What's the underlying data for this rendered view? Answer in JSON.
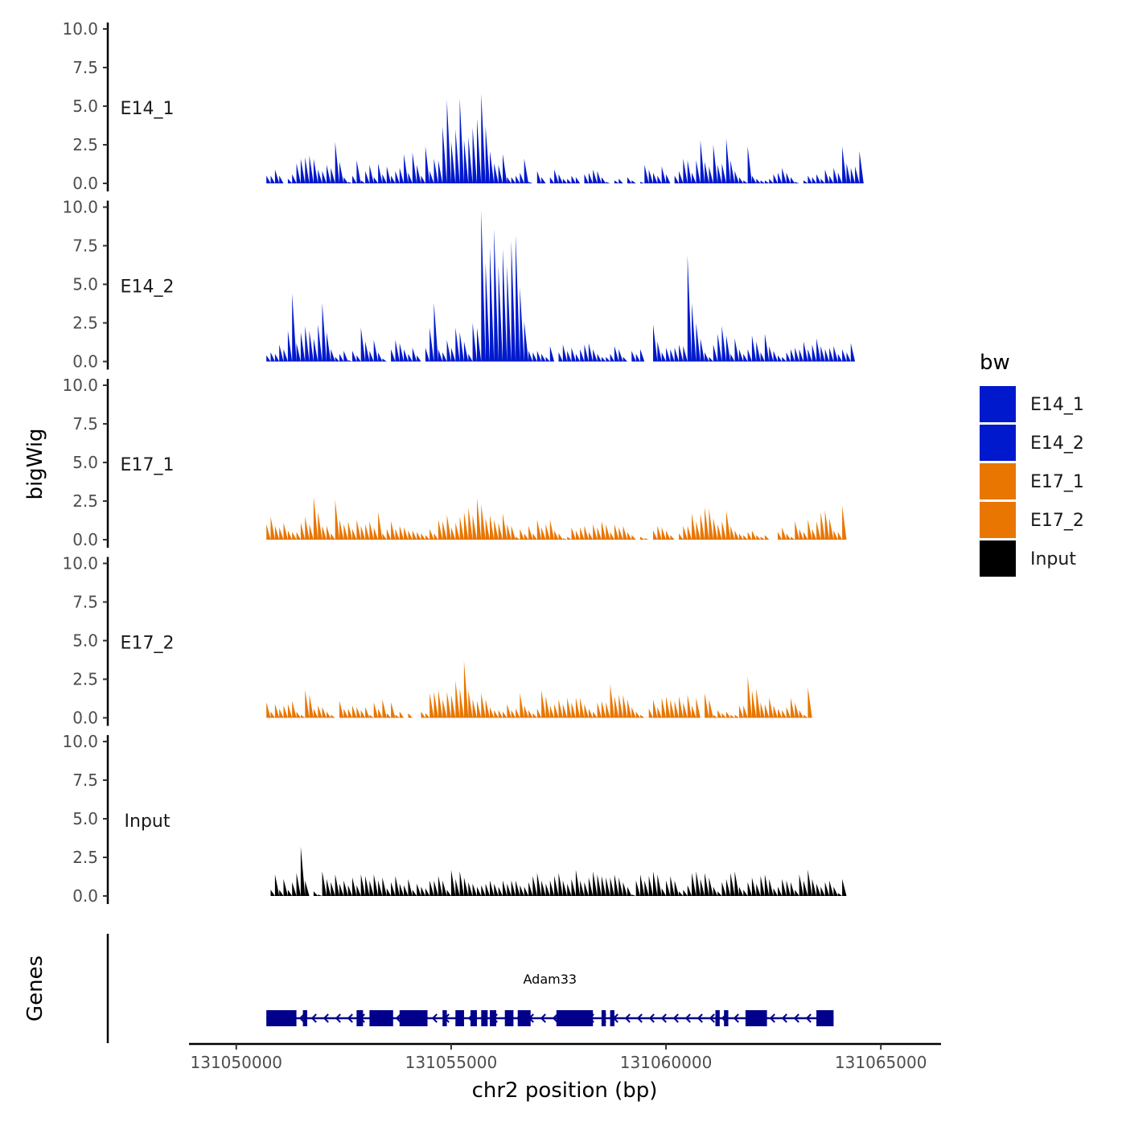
{
  "chart_data": {
    "type": "area",
    "y_axis_title": "bigWig",
    "gene_axis_title": "Genes",
    "x_axis_title": "chr2 position (bp)",
    "x_range": [
      131048900,
      131066400
    ],
    "x_ticks": [
      131050000,
      131055000,
      131060000,
      131065000
    ],
    "x_tick_labels": [
      "131050000",
      "131055000",
      "131060000",
      "131065000"
    ],
    "y_range": [
      0,
      10
    ],
    "y_ticks": [
      0,
      2.5,
      5,
      7.5,
      10
    ],
    "y_tick_labels": [
      "0.0",
      "2.5",
      "5.0",
      "7.5",
      "10.0"
    ],
    "data_start": 131050700,
    "data_step": 100,
    "legend": {
      "title": "bw",
      "entries": [
        {
          "name": "E14_1",
          "color": "#0019cc"
        },
        {
          "name": "E14_2",
          "color": "#0019cc"
        },
        {
          "name": "E17_1",
          "color": "#e87600"
        },
        {
          "name": "E17_2",
          "color": "#e87600"
        },
        {
          "name": "Input",
          "color": "#000000"
        }
      ]
    },
    "series": [
      {
        "name": "E14_1",
        "color": "#0019cc",
        "values": [
          0.5,
          0.5,
          0.9,
          0.5,
          0.0,
          0.3,
          0.6,
          1.3,
          1.6,
          1.7,
          1.8,
          1.6,
          0.9,
          0.8,
          1.2,
          1.0,
          2.7,
          1.4,
          0.4,
          0.1,
          0.5,
          1.5,
          0.2,
          0.8,
          1.2,
          0.4,
          1.3,
          0.6,
          1.1,
          0.5,
          0.8,
          1.0,
          1.9,
          0.7,
          2.0,
          1.2,
          0.5,
          2.4,
          0.8,
          1.6,
          1.5,
          3.7,
          5.4,
          2.7,
          3.5,
          5.5,
          2.8,
          3.0,
          3.6,
          4.2,
          5.8,
          3.7,
          2.1,
          1.3,
          1.2,
          1.9,
          0.4,
          0.4,
          0.5,
          0.7,
          1.6,
          0.1,
          0.0,
          0.8,
          0.4,
          0.0,
          0.4,
          0.9,
          0.6,
          0.3,
          0.3,
          0.5,
          0.4,
          0.0,
          0.6,
          0.7,
          0.9,
          0.8,
          0.4,
          0.1,
          0.0,
          0.2,
          0.3,
          0.0,
          0.4,
          0.2,
          0.0,
          0.1,
          1.2,
          0.9,
          0.7,
          0.5,
          1.1,
          0.6,
          0.0,
          0.5,
          0.8,
          1.6,
          1.5,
          0.7,
          1.5,
          2.8,
          1.4,
          1.1,
          2.5,
          1.2,
          1.3,
          2.9,
          1.5,
          0.8,
          0.4,
          0.2,
          2.4,
          0.5,
          0.3,
          0.2,
          0.2,
          0.3,
          0.6,
          0.7,
          1.0,
          0.7,
          0.4,
          0.1,
          0.0,
          0.2,
          0.5,
          0.4,
          0.6,
          0.3,
          0.9,
          0.5,
          1.0,
          0.7,
          2.4,
          1.3,
          1.0,
          1.1,
          2.1,
          2.1
        ]
      },
      {
        "name": "E14_2",
        "color": "#0019cc",
        "values": [
          0.4,
          0.6,
          0.5,
          1.1,
          0.8,
          2.0,
          4.4,
          1.2,
          1.9,
          2.3,
          2.0,
          1.5,
          2.4,
          3.8,
          1.9,
          0.8,
          0.3,
          0.5,
          0.7,
          0.1,
          0.7,
          0.4,
          2.2,
          1.3,
          0.7,
          1.4,
          0.6,
          0.2,
          0.0,
          0.8,
          1.4,
          1.2,
          0.8,
          0.5,
          0.9,
          0.4,
          0.0,
          0.9,
          2.2,
          3.8,
          0.8,
          0.6,
          1.4,
          0.9,
          2.2,
          1.9,
          1.3,
          0.5,
          2.5,
          2.2,
          9.8,
          6.4,
          7.4,
          8.6,
          6.2,
          7.3,
          6.2,
          7.8,
          8.2,
          4.8,
          2.6,
          0.7,
          0.6,
          0.7,
          0.5,
          0.3,
          1.0,
          0.0,
          0.6,
          1.1,
          0.7,
          0.9,
          0.5,
          0.8,
          1.1,
          1.2,
          0.8,
          0.5,
          0.3,
          0.3,
          0.5,
          1.0,
          0.8,
          0.3,
          0.0,
          0.7,
          0.5,
          0.8,
          0.0,
          0.0,
          2.4,
          1.3,
          0.6,
          0.9,
          0.8,
          0.9,
          1.1,
          1.0,
          6.9,
          3.8,
          2.5,
          1.5,
          0.6,
          0.3,
          1.1,
          1.8,
          2.3,
          1.7,
          0.5,
          1.5,
          0.8,
          0.5,
          0.8,
          1.7,
          1.3,
          0.6,
          1.8,
          1.0,
          0.7,
          0.4,
          0.3,
          0.6,
          0.8,
          0.9,
          0.8,
          1.3,
          0.8,
          1.1,
          1.5,
          1.0,
          0.8,
          0.9,
          1.0,
          0.5,
          0.8,
          0.6,
          1.2,
          0.5
        ]
      },
      {
        "name": "E17_1",
        "color": "#e87600",
        "values": [
          1.0,
          1.5,
          0.9,
          0.8,
          1.1,
          0.6,
          0.5,
          0.5,
          1.1,
          1.5,
          1.0,
          2.8,
          1.8,
          0.9,
          0.9,
          0.4,
          2.6,
          1.3,
          1.0,
          1.2,
          0.7,
          1.3,
          0.9,
          1.0,
          1.2,
          0.8,
          1.8,
          0.4,
          0.7,
          1.2,
          0.7,
          0.9,
          0.8,
          0.6,
          0.6,
          0.5,
          0.4,
          0.3,
          0.7,
          0.4,
          1.3,
          1.2,
          1.6,
          0.8,
          1.1,
          1.5,
          1.8,
          2.1,
          1.6,
          2.7,
          2.3,
          1.4,
          1.6,
          1.3,
          1.1,
          1.7,
          1.0,
          0.9,
          0.2,
          0.7,
          0.4,
          0.9,
          0.4,
          1.3,
          0.8,
          1.0,
          1.3,
          0.6,
          0.4,
          0.1,
          0.2,
          0.8,
          0.6,
          0.8,
          0.9,
          0.5,
          1.0,
          0.8,
          1.2,
          1.0,
          0.5,
          1.0,
          0.8,
          0.9,
          0.5,
          0.3,
          0.0,
          0.2,
          0.1,
          0.0,
          0.6,
          0.9,
          0.8,
          0.6,
          0.3,
          0.0,
          0.4,
          0.9,
          0.9,
          1.7,
          1.2,
          1.7,
          2.1,
          2.0,
          1.4,
          1.0,
          1.2,
          1.9,
          0.9,
          0.6,
          0.4,
          0.3,
          0.5,
          0.6,
          0.3,
          0.2,
          0.3,
          0.0,
          0.0,
          0.5,
          0.8,
          0.4,
          0.2,
          1.2,
          0.7,
          0.5,
          1.3,
          0.7,
          1.2,
          1.8,
          1.9,
          1.4,
          0.6,
          0.5,
          2.2,
          2.0
        ]
      },
      {
        "name": "E17_2",
        "color": "#e87600",
        "values": [
          1.0,
          0.4,
          0.9,
          0.6,
          0.8,
          0.9,
          1.1,
          0.4,
          0.2,
          1.8,
          1.5,
          0.6,
          0.8,
          0.7,
          0.4,
          0.2,
          0.0,
          1.1,
          0.6,
          0.6,
          0.8,
          0.7,
          0.5,
          0.7,
          0.2,
          1.0,
          0.6,
          1.2,
          0.3,
          1.0,
          0.2,
          0.4,
          0.0,
          0.3,
          0.0,
          0.0,
          0.4,
          0.3,
          1.6,
          1.7,
          1.8,
          1.2,
          1.7,
          1.5,
          2.4,
          1.9,
          3.7,
          1.8,
          1.2,
          1.1,
          1.6,
          1.2,
          0.7,
          0.5,
          0.5,
          0.4,
          0.9,
          0.5,
          0.6,
          1.6,
          0.8,
          0.5,
          0.3,
          0.6,
          1.8,
          1.4,
          0.8,
          0.9,
          1.2,
          0.9,
          1.3,
          1.0,
          1.3,
          1.3,
          0.9,
          0.6,
          0.4,
          1.0,
          1.1,
          1.0,
          2.2,
          1.4,
          1.5,
          1.5,
          1.2,
          0.7,
          0.4,
          0.2,
          0.0,
          0.6,
          1.2,
          0.7,
          1.3,
          1.4,
          1.2,
          1.1,
          1.4,
          1.0,
          1.5,
          0.8,
          1.3,
          0.0,
          1.6,
          1.2,
          0.2,
          0.5,
          0.3,
          0.4,
          0.2,
          0.2,
          0.8,
          0.8,
          2.7,
          1.8,
          1.9,
          1.0,
          0.9,
          1.3,
          0.8,
          0.6,
          0.5,
          0.7,
          1.3,
          1.0,
          0.5,
          0.2,
          2.0,
          2.0
        ]
      },
      {
        "name": "Input",
        "color": "#000000",
        "values": [
          0.0,
          0.4,
          1.4,
          0.4,
          1.1,
          0.4,
          0.9,
          1.5,
          3.2,
          1.0,
          0.0,
          0.3,
          0.1,
          1.6,
          1.1,
          0.9,
          1.4,
          0.8,
          1.0,
          0.7,
          1.2,
          0.7,
          1.4,
          1.3,
          1.0,
          1.4,
          1.0,
          1.2,
          0.5,
          0.9,
          1.3,
          0.8,
          0.7,
          1.1,
          0.4,
          0.8,
          0.6,
          0.5,
          1.0,
          1.0,
          1.3,
          1.0,
          0.4,
          1.7,
          1.1,
          1.6,
          1.2,
          0.9,
          0.8,
          0.6,
          0.7,
          0.8,
          1.0,
          0.8,
          0.6,
          1.0,
          0.8,
          1.0,
          1.0,
          0.7,
          0.6,
          0.9,
          1.3,
          1.5,
          1.0,
          0.8,
          1.0,
          1.3,
          1.5,
          1.0,
          0.8,
          1.1,
          1.7,
          1.0,
          0.9,
          1.2,
          1.6,
          1.4,
          1.3,
          1.2,
          1.2,
          1.4,
          1.2,
          0.9,
          0.6,
          0.1,
          1.0,
          1.4,
          1.0,
          1.3,
          1.6,
          1.4,
          0.5,
          1.0,
          1.3,
          1.0,
          0.3,
          0.4,
          0.7,
          1.5,
          1.6,
          1.1,
          1.5,
          1.2,
          0.6,
          0.3,
          0.9,
          1.1,
          1.5,
          1.6,
          0.6,
          0.4,
          0.9,
          1.2,
          0.8,
          1.3,
          1.4,
          1.1,
          0.5,
          0.6,
          1.1,
          1.0,
          0.9,
          0.4,
          1.4,
          1.0,
          1.7,
          1.1,
          0.8,
          0.6,
          0.9,
          1.0,
          0.6,
          0.2,
          1.1,
          1.2
        ]
      }
    ],
    "gene": {
      "name": "Adam33",
      "strand": "-",
      "color": "#00008b",
      "start": 131050700,
      "end": 131063900,
      "exons": [
        [
          131050700,
          131051400
        ],
        [
          131051550,
          131051650
        ],
        [
          131052800,
          131052950
        ],
        [
          131053100,
          131053650
        ],
        [
          131053800,
          131054450
        ],
        [
          131054800,
          131054900
        ],
        [
          131055100,
          131055300
        ],
        [
          131055450,
          131055600
        ],
        [
          131055700,
          131055850
        ],
        [
          131055900,
          131056050
        ],
        [
          131056250,
          131056450
        ],
        [
          131056550,
          131056850
        ],
        [
          131057450,
          131058300
        ],
        [
          131058500,
          131058600
        ],
        [
          131058700,
          131058800
        ],
        [
          131061150,
          131061250
        ],
        [
          131061350,
          131061450
        ],
        [
          131061850,
          131062350
        ],
        [
          131063500,
          131063900
        ]
      ]
    }
  }
}
